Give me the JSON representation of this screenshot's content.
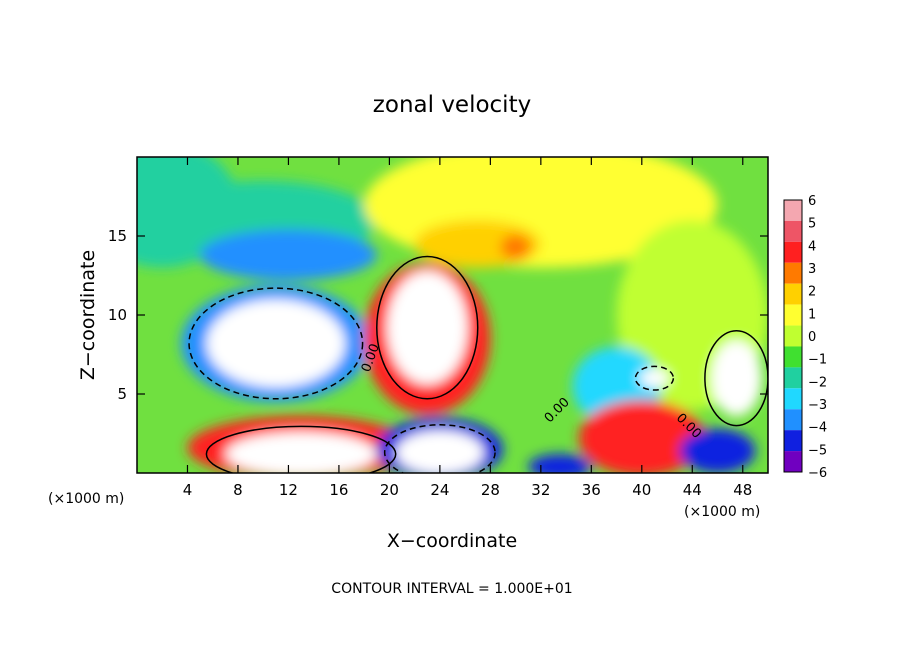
{
  "chart_data": {
    "type": "heatmap",
    "title": "zonal velocity",
    "xlabel": "X−coordinate",
    "ylabel": "Z−coordinate",
    "x_unit_left": "(×1000 m)",
    "x_unit_right": "(×1000 m)",
    "xlim": [
      0,
      50
    ],
    "ylim": [
      0,
      20
    ],
    "xticks": [
      4,
      8,
      12,
      16,
      20,
      24,
      28,
      32,
      36,
      40,
      44,
      48
    ],
    "yticks": [
      5,
      10,
      15
    ],
    "contour_label": "0.00",
    "footer": "CONTOUR INTERVAL = 1.000E+01",
    "colorbar": {
      "labels": [
        "6",
        "5",
        "4",
        "3",
        "2",
        "1",
        "0",
        "−1",
        "−2",
        "−3",
        "−4",
        "−5",
        "−6"
      ],
      "colors": [
        "#f4a7b0",
        "#ee5566",
        "#ff2020",
        "#ff7a00",
        "#ffd000",
        "#ffff30",
        "#c0ff30",
        "#40e030",
        "#20d0a0",
        "#20d8ff",
        "#2090ff",
        "#1020e0",
        "#7000c0"
      ]
    },
    "background_color": "#70e040",
    "regions": [
      {
        "name": "upper-left cyan",
        "value": -1.5,
        "x": 2,
        "z": 17,
        "rx": 6,
        "rz": 4
      },
      {
        "name": "upper-left cyan band",
        "value": -1.8,
        "x": 10,
        "z": 16,
        "rx": 9,
        "rz": 2.5
      },
      {
        "name": "negative band",
        "value": -4,
        "x": 12,
        "z": 13.8,
        "rx": 7,
        "rz": 1.6
      },
      {
        "name": "top light region",
        "value": 1.3,
        "x": 32,
        "z": 17,
        "rx": 14,
        "rz": 4
      },
      {
        "name": "light patch",
        "value": 1.8,
        "x": 27,
        "z": 14.5,
        "rx": 5,
        "rz": 1.5
      },
      {
        "name": "orange spot",
        "value": 3,
        "x": 30,
        "z": 14.3,
        "rx": 1.2,
        "rz": 0.8
      },
      {
        "name": "right green",
        "value": 0,
        "x": 44,
        "z": 10,
        "rx": 6,
        "rz": 6
      },
      {
        "name": "cold pool halo",
        "value": -4,
        "x": 11,
        "z": 8.2,
        "rx": 7.5,
        "rz": 3.7
      },
      {
        "name": "cold pool core",
        "value": -7,
        "x": 11,
        "z": 8.2,
        "rx": 5.5,
        "rz": 2.8
      },
      {
        "name": "updraft halo",
        "value": 4,
        "x": 23,
        "z": 8.5,
        "rx": 5,
        "rz": 4.8
      },
      {
        "name": "updraft core",
        "value": 7,
        "x": 23,
        "z": 9.2,
        "rx": 3.2,
        "rz": 3.6
      },
      {
        "name": "lower-left red",
        "value": 4,
        "x": 13,
        "z": 1.6,
        "rx": 9,
        "rz": 2
      },
      {
        "name": "lower-left white",
        "value": 7,
        "x": 13,
        "z": 1.2,
        "rx": 6,
        "rz": 1.4
      },
      {
        "name": "lower-center blue",
        "value": -4.5,
        "x": 24,
        "z": 1.5,
        "rx": 5,
        "rz": 2
      },
      {
        "name": "lower-center white",
        "value": -7,
        "x": 24,
        "z": 1.3,
        "rx": 3.5,
        "rz": 1.4
      },
      {
        "name": "right blue",
        "value": -3,
        "x": 38,
        "z": 5.5,
        "rx": 3.5,
        "rz": 2.5
      },
      {
        "name": "right small white",
        "value": -7,
        "x": 41,
        "z": 6,
        "rx": 1.2,
        "rz": 0.6
      },
      {
        "name": "lower-right red",
        "value": 4,
        "x": 40,
        "z": 2.2,
        "rx": 5,
        "rz": 2.4
      },
      {
        "name": "lower-right blue",
        "value": -4.5,
        "x": 46,
        "z": 1.4,
        "rx": 3,
        "rz": 1.4
      },
      {
        "name": "right white",
        "value": 7,
        "x": 47.5,
        "z": 6,
        "rx": 2,
        "rz": 2.4
      },
      {
        "name": "bottom blue blob",
        "value": -5,
        "x": 33.5,
        "z": 0.4,
        "rx": 2.5,
        "rz": 0.8
      }
    ]
  }
}
